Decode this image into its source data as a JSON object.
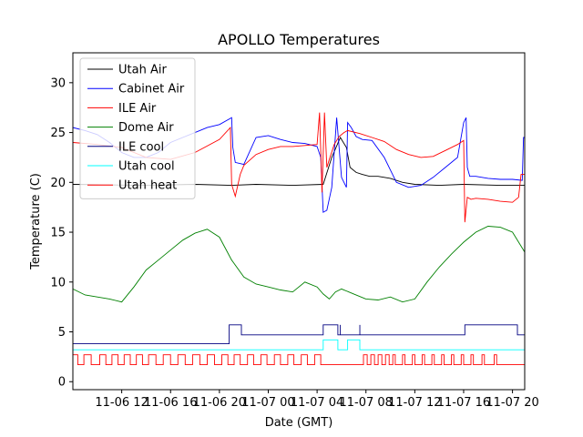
{
  "chart_data": {
    "type": "line",
    "title": "APOLLO Temperatures",
    "xlabel": "Date (GMT)",
    "ylabel": "Temperature (C)",
    "xlim": [
      8,
      45
    ],
    "ylim": [
      -0.8,
      33
    ],
    "yticks": [
      0,
      5,
      10,
      15,
      20,
      25,
      30
    ],
    "x_unit": "hours since 2009-11-06 00:00 GMT (estimated)",
    "xticks": [
      {
        "x": 12,
        "label": "11-06 12"
      },
      {
        "x": 16,
        "label": "11-06 16"
      },
      {
        "x": 20,
        "label": "11-06 20"
      },
      {
        "x": 24,
        "label": "11-07 00"
      },
      {
        "x": 28,
        "label": "11-07 04"
      },
      {
        "x": 32,
        "label": "11-07 08"
      },
      {
        "x": 36,
        "label": "11-07 12"
      },
      {
        "x": 40,
        "label": "11-07 16"
      },
      {
        "x": 44,
        "label": "11-07 20"
      }
    ],
    "legend_position": "upper-left",
    "series": [
      {
        "name": "Utah Air",
        "color": "#000000",
        "x": [
          8,
          14,
          18,
          21,
          23,
          26,
          28.5,
          29.2,
          29.9,
          30.4,
          30.7,
          31.2,
          31.7,
          32.3,
          33,
          34,
          35,
          36,
          38,
          40,
          43,
          45
        ],
        "y": [
          19.8,
          19.7,
          19.8,
          19.7,
          19.8,
          19.7,
          19.8,
          22.5,
          24.5,
          23.5,
          21.5,
          21,
          20.8,
          20.6,
          20.6,
          20.4,
          20,
          19.8,
          19.7,
          19.8,
          19.7,
          19.7
        ]
      },
      {
        "name": "Cabinet Air",
        "color": "#0000ff",
        "x": [
          8,
          9,
          10,
          11,
          12,
          13,
          14,
          15,
          16,
          17,
          18,
          19,
          20,
          21,
          21.1,
          21.3,
          22,
          23,
          24,
          25,
          26,
          27,
          28,
          28.3,
          28.5,
          28.8,
          29.2,
          29.6,
          30.0,
          30.4,
          30.5,
          30.8,
          31.2,
          31.7,
          32.5,
          33.5,
          34.5,
          35.5,
          36.5,
          37.5,
          38.5,
          39.5,
          40.0,
          40.2,
          40.3,
          40.5,
          41,
          42,
          43,
          44,
          44.8,
          44.9,
          45
        ],
        "y": [
          25.5,
          25.2,
          24.8,
          24,
          23,
          22.5,
          22.5,
          23,
          24,
          24.5,
          25,
          25.5,
          25.8,
          26.5,
          23.5,
          22,
          21.8,
          24.5,
          24.7,
          24.3,
          24,
          23.9,
          23.6,
          22.5,
          17,
          17.2,
          19.5,
          26.5,
          20.5,
          19.5,
          26,
          25.5,
          24.6,
          24.3,
          24.2,
          22.5,
          20,
          19.5,
          19.7,
          20.5,
          21.5,
          22.5,
          26,
          26.5,
          21.5,
          20.6,
          20.6,
          20.4,
          20.3,
          20.3,
          20.2,
          24.5,
          24.5
        ]
      },
      {
        "name": "ILE Air",
        "color": "#ff0000",
        "x": [
          8,
          10,
          12,
          14,
          16,
          18,
          20,
          20.9,
          21.0,
          21.3,
          21.7,
          22,
          23,
          24,
          25,
          26,
          27,
          28,
          28.2,
          28.4,
          28.6,
          28.8,
          29,
          29.4,
          29.8,
          30.2,
          30.5,
          31.5,
          32.5,
          33.5,
          34.5,
          35.5,
          36.5,
          37.5,
          38.5,
          39.5,
          40.0,
          40.1,
          40.3,
          40.6,
          41,
          42,
          43,
          44,
          44.5,
          44.7,
          45
        ],
        "y": [
          24,
          23.8,
          23.5,
          22.5,
          22.3,
          23,
          24.3,
          25.5,
          19.8,
          18.6,
          20.8,
          21.7,
          22.8,
          23.3,
          23.6,
          23.6,
          23.7,
          23.8,
          27,
          19,
          27,
          21.5,
          22.3,
          23.8,
          24.6,
          25,
          25.2,
          24.9,
          24.5,
          24.1,
          23.3,
          22.8,
          22.5,
          22.6,
          23.2,
          23.8,
          24.2,
          16,
          18.5,
          18.3,
          18.4,
          18.3,
          18.1,
          18,
          18.5,
          20.8,
          20.8
        ]
      },
      {
        "name": "Dome Air",
        "color": "#008000",
        "x": [
          8,
          9,
          10,
          11,
          12,
          13,
          14,
          15,
          16,
          17,
          18,
          19,
          20,
          21,
          22,
          23,
          24,
          25,
          26,
          27,
          28,
          28.5,
          29,
          29.5,
          30,
          31,
          32,
          33,
          34,
          35,
          36,
          37,
          38,
          39,
          40,
          41,
          42,
          43,
          44,
          45
        ],
        "y": [
          9.3,
          8.7,
          8.5,
          8.3,
          8.0,
          9.5,
          11.2,
          12.2,
          13.2,
          14.2,
          14.9,
          15.3,
          14.5,
          12.2,
          10.5,
          9.8,
          9.5,
          9.2,
          9.0,
          10.0,
          9.5,
          8.8,
          8.3,
          9.0,
          9.3,
          8.8,
          8.3,
          8.2,
          8.5,
          8.0,
          8.3,
          10.0,
          11.5,
          12.8,
          14.0,
          15.0,
          15.6,
          15.5,
          15.0,
          13.0
        ]
      },
      {
        "name": "ILE cool",
        "color": "#000080",
        "shape": "step",
        "x": [
          8,
          20.8,
          20.8,
          21.8,
          21.8,
          28.5,
          28.5,
          29.7,
          29.7,
          31.5,
          31.5,
          40.1,
          40.1,
          44.4,
          44.4,
          45
        ],
        "y": [
          3.8,
          3.8,
          5.7,
          5.7,
          4.7,
          4.7,
          5.7,
          5.7,
          4.7,
          4.7,
          4.7,
          4.7,
          5.7,
          5.7,
          4.7,
          4.7
        ],
        "extra_spikes_x": [
          29.9,
          31.5
        ]
      },
      {
        "name": "Utah cool",
        "color": "#00ffff",
        "shape": "step",
        "x": [
          8,
          28.5,
          28.5,
          29.7,
          29.7,
          30.5,
          30.5,
          31.5,
          31.5,
          45
        ],
        "y": [
          3.2,
          3.2,
          4.2,
          4.2,
          3.2,
          3.2,
          4.2,
          4.2,
          3.2,
          3.2
        ]
      },
      {
        "name": "Utah heat",
        "color": "#ff0000",
        "shape": "pulse-train",
        "low": 1.7,
        "high": 2.7,
        "x_start": 8,
        "x_end": 45,
        "high_intervals": [
          [
            8,
            8.4
          ],
          [
            8.9,
            9.5
          ],
          [
            10.2,
            10.7
          ],
          [
            11.2,
            11.7
          ],
          [
            12.2,
            12.7
          ],
          [
            13.2,
            13.7
          ],
          [
            14.2,
            14.8
          ],
          [
            15.4,
            16.0
          ],
          [
            16.6,
            17.2
          ],
          [
            17.8,
            18.4
          ],
          [
            19.0,
            19.6
          ],
          [
            20.2,
            20.7
          ],
          [
            21.2,
            21.7
          ],
          [
            22.3,
            22.8
          ],
          [
            23.4,
            23.9
          ],
          [
            24.5,
            25.0
          ],
          [
            25.6,
            26.1
          ],
          [
            26.7,
            27.2
          ],
          [
            27.8,
            28.3
          ],
          [
            31.8,
            32.1
          ],
          [
            32.4,
            32.7
          ],
          [
            33.0,
            33.3
          ],
          [
            33.6,
            33.9
          ],
          [
            34.2,
            34.4
          ],
          [
            35.0,
            35.2
          ],
          [
            35.8,
            36.0
          ],
          [
            36.6,
            36.8
          ],
          [
            37.4,
            37.6
          ],
          [
            38.2,
            38.4
          ],
          [
            39.0,
            39.2
          ],
          [
            39.8,
            40.0
          ],
          [
            40.6,
            40.8
          ],
          [
            41.5,
            41.7
          ],
          [
            42.5,
            42.7
          ]
        ]
      }
    ]
  }
}
